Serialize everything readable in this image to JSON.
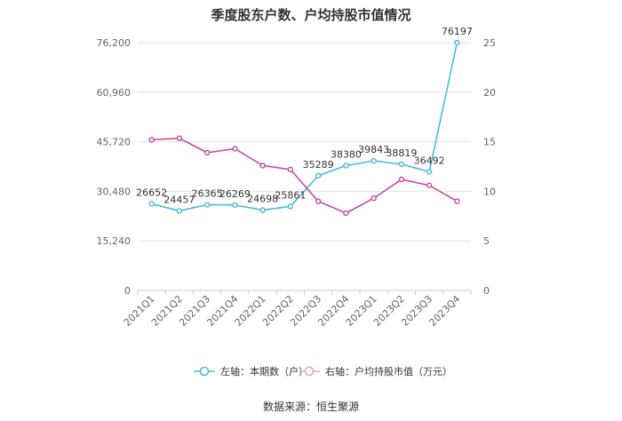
{
  "chart_data": {
    "type": "line",
    "title": "季度股东户数、户均持股市值情况",
    "categories": [
      "2021Q1",
      "2021Q2",
      "2021Q3",
      "2021Q4",
      "2022Q1",
      "2022Q2",
      "2022Q3",
      "2022Q4",
      "2023Q1",
      "2023Q2",
      "2023Q3",
      "2023Q4"
    ],
    "left_axis": {
      "min": 0,
      "max": 76200,
      "ticks": [
        0,
        15240,
        30480,
        45720,
        60960,
        76200
      ],
      "tick_labels": [
        "0",
        "15,240",
        "30,480",
        "45,720",
        "60,960",
        "76,200"
      ]
    },
    "right_axis": {
      "min": 0,
      "max": 25,
      "ticks": [
        0,
        5,
        10,
        15,
        20,
        25
      ],
      "tick_labels": [
        "0",
        "5",
        "10",
        "15",
        "20",
        "25"
      ]
    },
    "series": [
      {
        "name": "左轴：本期数（户）",
        "axis": "left",
        "color": "#4bb8e6",
        "values": [
          26652,
          24457,
          26365,
          26269,
          24698,
          25861,
          35289,
          38380,
          39843,
          38819,
          36492,
          76197
        ],
        "labels": [
          "26652",
          "24457",
          "26365",
          "26269",
          "24698",
          "25861",
          "35289",
          "38380",
          "39843",
          "38819",
          "36492",
          "76197"
        ]
      },
      {
        "name": "右轴：户均持股市值（万元）",
        "axis": "right",
        "color": "#c9479c",
        "values": [
          15.2,
          15.35,
          13.9,
          14.3,
          12.6,
          12.2,
          9.0,
          7.8,
          9.3,
          11.2,
          10.6,
          9.0
        ]
      }
    ],
    "grid": true,
    "legend_position": "bottom"
  },
  "source": "数据来源：恒生聚源"
}
